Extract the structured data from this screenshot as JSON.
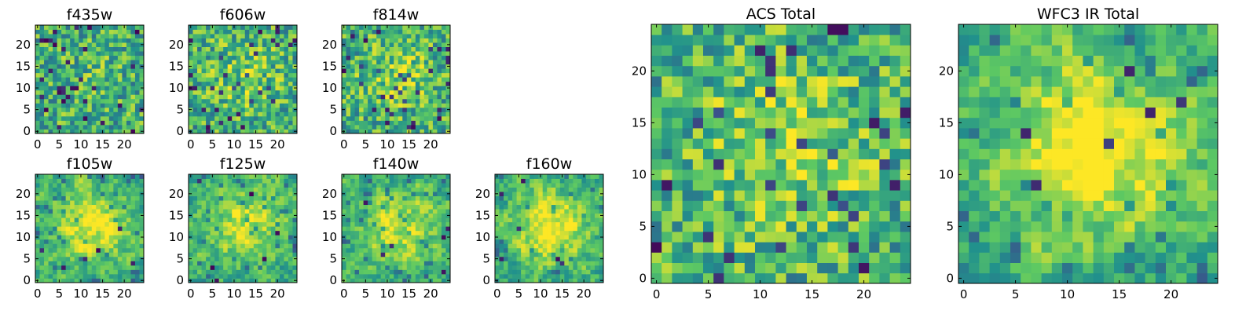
{
  "panels": [
    {
      "id": "f435w",
      "title": "f435w",
      "size": "small",
      "seed": 11,
      "center_boost": 0.05,
      "smooth": 0,
      "xticks": [
        "0",
        "5",
        "10",
        "15",
        "20"
      ],
      "yticks": [
        "0",
        "5",
        "10",
        "15",
        "20"
      ]
    },
    {
      "id": "f606w",
      "title": "f606w",
      "size": "small",
      "seed": 23,
      "center_boost": 0.15,
      "smooth": 0,
      "xticks": [
        "0",
        "5",
        "10",
        "15",
        "20"
      ],
      "yticks": [
        "0",
        "5",
        "10",
        "15",
        "20"
      ]
    },
    {
      "id": "f814w",
      "title": "f814w",
      "size": "small",
      "seed": 37,
      "center_boost": 0.18,
      "smooth": 0,
      "xticks": [
        "0",
        "5",
        "10",
        "15",
        "20"
      ],
      "yticks": [
        "0",
        "5",
        "10",
        "15",
        "20"
      ]
    },
    {
      "id": "f105w",
      "title": "f105w",
      "size": "small",
      "seed": 41,
      "center_boost": 0.35,
      "smooth": 1,
      "xticks": [
        "0",
        "5",
        "10",
        "15",
        "20"
      ],
      "yticks": [
        "0",
        "5",
        "10",
        "15",
        "20"
      ]
    },
    {
      "id": "f125w",
      "title": "f125w",
      "size": "small",
      "seed": 53,
      "center_boost": 0.3,
      "smooth": 1,
      "xticks": [
        "0",
        "5",
        "10",
        "15",
        "20"
      ],
      "yticks": [
        "0",
        "5",
        "10",
        "15",
        "20"
      ]
    },
    {
      "id": "f140w",
      "title": "f140w",
      "size": "small",
      "seed": 67,
      "center_boost": 0.32,
      "smooth": 1,
      "xticks": [
        "0",
        "5",
        "10",
        "15",
        "20"
      ],
      "yticks": [
        "0",
        "5",
        "10",
        "15",
        "20"
      ]
    },
    {
      "id": "f160w",
      "title": "f160w",
      "size": "small",
      "seed": 79,
      "center_boost": 0.38,
      "smooth": 1,
      "xticks": [
        "0",
        "5",
        "10",
        "15",
        "20"
      ],
      "yticks": [
        "0",
        "5",
        "10",
        "15",
        "20"
      ]
    },
    {
      "id": "acs-total",
      "title": "ACS Total",
      "size": "large",
      "seed": 97,
      "center_boost": 0.22,
      "smooth": 0,
      "xticks": [
        "0",
        "5",
        "10",
        "15",
        "20"
      ],
      "yticks": [
        "0",
        "5",
        "10",
        "15",
        "20"
      ]
    },
    {
      "id": "wfc3-ir-total",
      "title": "WFC3 IR Total",
      "size": "large",
      "seed": 131,
      "center_boost": 0.45,
      "smooth": 1,
      "xticks": [
        "0",
        "5",
        "10",
        "15",
        "20"
      ],
      "yticks": [
        "0",
        "5",
        "10",
        "15",
        "20"
      ]
    }
  ],
  "colormap": [
    "#440154",
    "#3b528b",
    "#21918c",
    "#5ec962",
    "#fde725"
  ]
}
